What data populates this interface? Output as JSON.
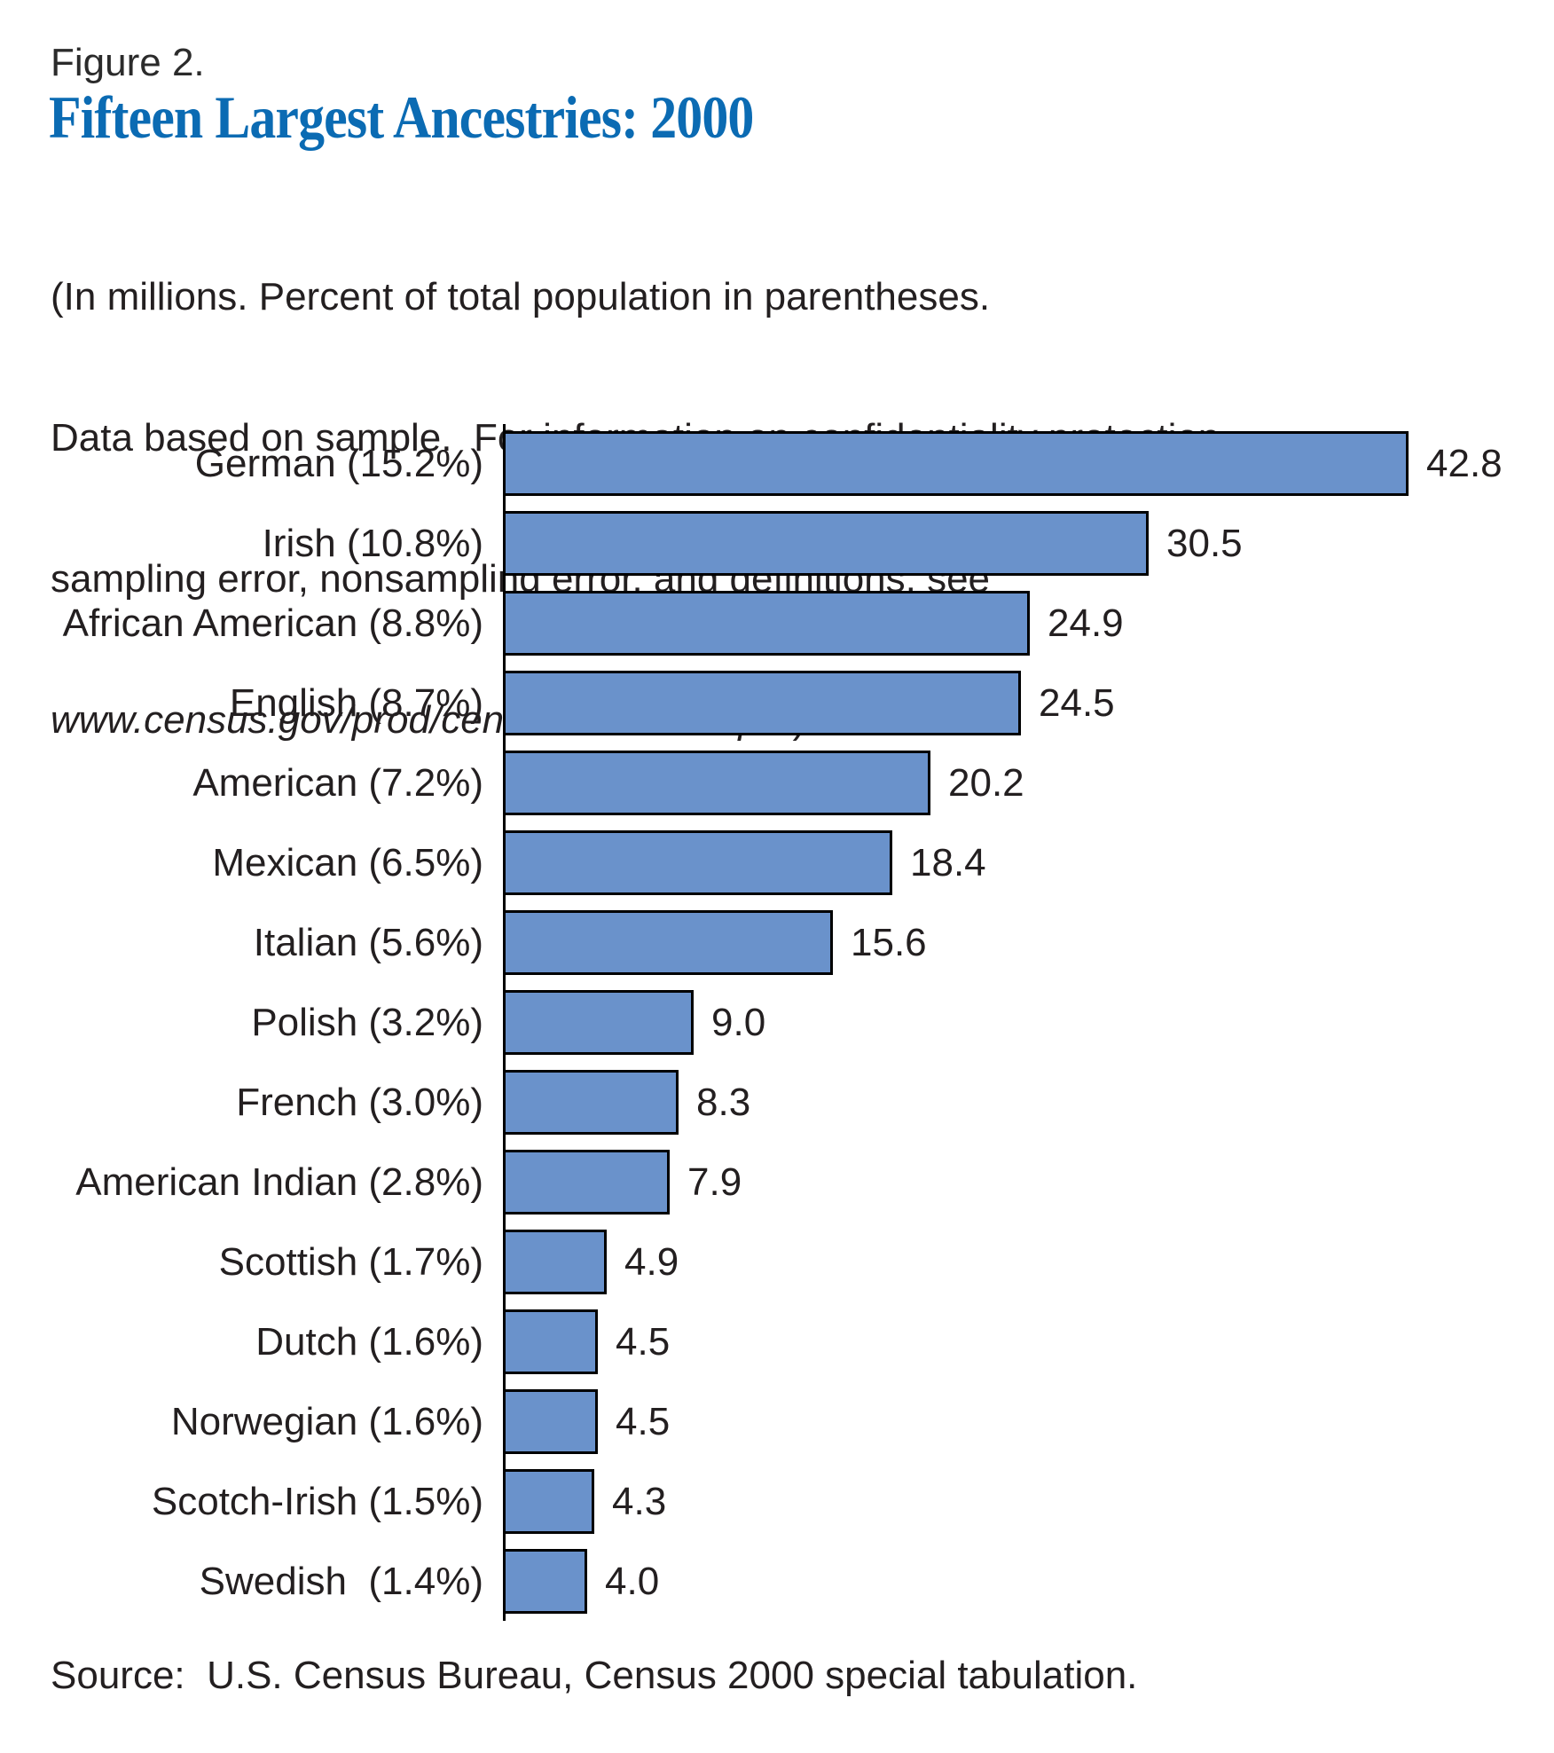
{
  "figure_label": "Figure 2.",
  "title": "Fifteen Largest Ancestries: 2000",
  "note_lines": [
    "(In millions. Percent of total population in parentheses.",
    "Data based on sample.  For information on confidentiality protection,",
    "sampling error, nonsampling error, and definitions, see"
  ],
  "note_url": "www.census.gov/prod/cen2000/doc/sf3.pdf",
  "note_close_paren": ")",
  "source": "Source:  U.S. Census Bureau, Census 2000 special tabulation.",
  "colors": {
    "title_blue": "#0b6bb3",
    "bar_fill": "#6a92cb",
    "bar_border": "#000000",
    "text": "#231f20"
  },
  "chart_data": {
    "type": "bar",
    "orientation": "horizontal",
    "title": "Fifteen Largest Ancestries: 2000",
    "xlabel": "",
    "ylabel": "",
    "unit": "millions",
    "xlim": [
      0,
      42.8
    ],
    "grid": false,
    "legend": false,
    "categories": [
      "German (15.2%)",
      "Irish (10.8%)",
      "African American (8.8%)",
      "English (8.7%)",
      "American (7.2%)",
      "Mexican (6.5%)",
      "Italian (5.6%)",
      "Polish (3.2%)",
      "French (3.0%)",
      "American Indian (2.8%)",
      "Scottish (1.7%)",
      "Dutch (1.6%)",
      "Norwegian (1.6%)",
      "Scotch-Irish (1.5%)",
      "Swedish  (1.4%)"
    ],
    "values": [
      42.8,
      30.5,
      24.9,
      24.5,
      20.2,
      18.4,
      15.6,
      9.0,
      8.3,
      7.9,
      4.9,
      4.5,
      4.5,
      4.3,
      4.0
    ]
  }
}
